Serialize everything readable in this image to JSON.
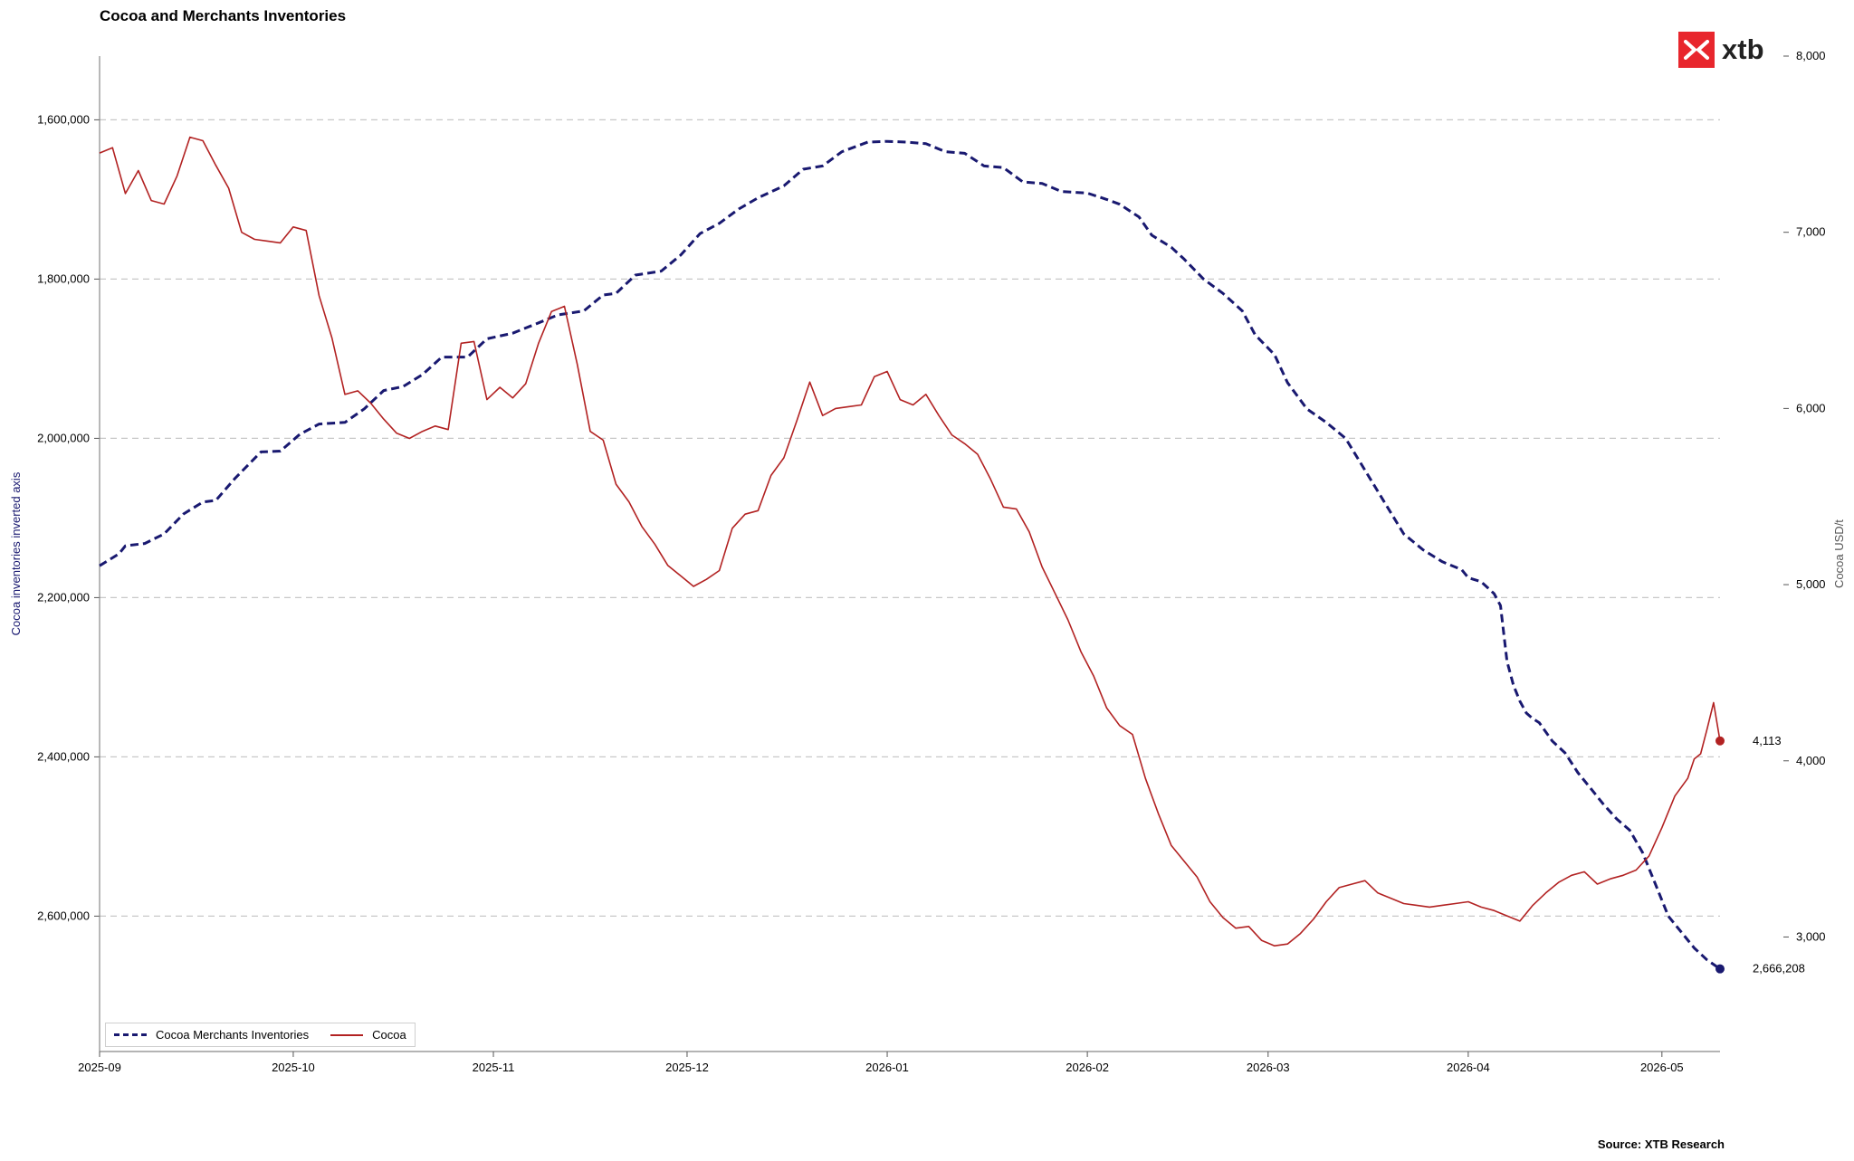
{
  "title": "Cocoa and Merchants Inventories",
  "source": "Source: XTB Research",
  "logo_text": "xtb",
  "chart_data": {
    "type": "line",
    "title": "Cocoa and Merchants Inventories",
    "x_ticks": [
      "2025-09",
      "2025-10",
      "2025-11",
      "2025-12",
      "2026-01",
      "2026-02",
      "2026-03",
      "2026-04",
      "2026-05"
    ],
    "xlim": [
      "2025-09-01",
      "2026-05-10"
    ],
    "y_left": {
      "label": "Cocoa inventories inverted axis",
      "inverted": true,
      "lim": [
        1520000,
        2770000
      ],
      "ticks": [
        "1,600,000",
        "1,800,000",
        "2,000,000",
        "2,200,000",
        "2,400,000",
        "2,600,000"
      ],
      "tick_values": [
        1600000,
        1800000,
        2000000,
        2200000,
        2400000,
        2600000
      ]
    },
    "y_right": {
      "label": "Cocoa USD/t",
      "lim": [
        2350,
        8000
      ],
      "ticks": [
        "3,000",
        "4,000",
        "5,000",
        "6,000",
        "7,000",
        "8,000"
      ],
      "tick_values": [
        3000,
        4000,
        5000,
        6000,
        7000,
        8000
      ]
    },
    "grid": "horizontal dashed",
    "legend_position": "bottom-left",
    "series": [
      {
        "name": "Cocoa Merchants Inventories",
        "axis": "left",
        "color": "#191970",
        "style": "dashed",
        "last_label": "2,666,208",
        "points": [
          [
            "2025-09-01",
            2160000
          ],
          [
            "2025-09-04",
            2145000
          ],
          [
            "2025-09-05",
            2135000
          ],
          [
            "2025-09-08",
            2132000
          ],
          [
            "2025-09-11",
            2120000
          ],
          [
            "2025-09-14",
            2095000
          ],
          [
            "2025-09-17",
            2080000
          ],
          [
            "2025-09-19",
            2078000
          ],
          [
            "2025-09-22",
            2050000
          ],
          [
            "2025-09-26",
            2017000
          ],
          [
            "2025-09-29",
            2016000
          ],
          [
            "2025-10-02",
            1995000
          ],
          [
            "2025-10-05",
            1982000
          ],
          [
            "2025-10-09",
            1980000
          ],
          [
            "2025-10-12",
            1963000
          ],
          [
            "2025-10-15",
            1940000
          ],
          [
            "2025-10-18",
            1935000
          ],
          [
            "2025-10-21",
            1920000
          ],
          [
            "2025-10-24",
            1898000
          ],
          [
            "2025-10-28",
            1898000
          ],
          [
            "2025-10-31",
            1875000
          ],
          [
            "2025-11-04",
            1868000
          ],
          [
            "2025-11-08",
            1855000
          ],
          [
            "2025-11-11",
            1845000
          ],
          [
            "2025-11-15",
            1840000
          ],
          [
            "2025-11-18",
            1820000
          ],
          [
            "2025-11-20",
            1818000
          ],
          [
            "2025-11-23",
            1795000
          ],
          [
            "2025-11-27",
            1790000
          ],
          [
            "2025-11-30",
            1770000
          ],
          [
            "2025-12-03",
            1743000
          ],
          [
            "2025-12-06",
            1730000
          ],
          [
            "2025-12-09",
            1712000
          ],
          [
            "2025-12-12",
            1698000
          ],
          [
            "2025-12-16",
            1683000
          ],
          [
            "2025-12-19",
            1662000
          ],
          [
            "2025-12-22",
            1658000
          ],
          [
            "2025-12-25",
            1640000
          ],
          [
            "2025-12-29",
            1628000
          ],
          [
            "2026-01-01",
            1627000
          ],
          [
            "2026-01-04",
            1628000
          ],
          [
            "2026-01-07",
            1630000
          ],
          [
            "2026-01-10",
            1640000
          ],
          [
            "2026-01-13",
            1642000
          ],
          [
            "2026-01-16",
            1658000
          ],
          [
            "2026-01-19",
            1660000
          ],
          [
            "2026-01-22",
            1678000
          ],
          [
            "2026-01-25",
            1680000
          ],
          [
            "2026-01-28",
            1690000
          ],
          [
            "2026-02-01",
            1692000
          ],
          [
            "2026-02-04",
            1700000
          ],
          [
            "2026-02-06",
            1706000
          ],
          [
            "2026-02-09",
            1722000
          ],
          [
            "2026-02-11",
            1745000
          ],
          [
            "2026-02-14",
            1760000
          ],
          [
            "2026-02-16",
            1775000
          ],
          [
            "2026-02-19",
            1800000
          ],
          [
            "2026-02-22",
            1818000
          ],
          [
            "2026-02-25",
            1840000
          ],
          [
            "2026-02-27",
            1870000
          ],
          [
            "2026-03-02",
            1895000
          ],
          [
            "2026-03-04",
            1930000
          ],
          [
            "2026-03-07",
            1963000
          ],
          [
            "2026-03-10",
            1980000
          ],
          [
            "2026-03-13",
            2000000
          ],
          [
            "2026-03-16",
            2040000
          ],
          [
            "2026-03-19",
            2080000
          ],
          [
            "2026-03-22",
            2120000
          ],
          [
            "2026-03-25",
            2140000
          ],
          [
            "2026-03-28",
            2155000
          ],
          [
            "2026-03-31",
            2165000
          ],
          [
            "2026-04-01",
            2175000
          ],
          [
            "2026-04-03",
            2180000
          ],
          [
            "2026-04-05",
            2195000
          ],
          [
            "2026-04-06",
            2210000
          ],
          [
            "2026-04-07",
            2280000
          ],
          [
            "2026-04-08",
            2310000
          ],
          [
            "2026-04-09",
            2330000
          ],
          [
            "2026-04-10",
            2345000
          ],
          [
            "2026-04-11",
            2352000
          ],
          [
            "2026-04-12",
            2357000
          ],
          [
            "2026-04-14",
            2380000
          ],
          [
            "2026-04-16",
            2395000
          ],
          [
            "2026-04-18",
            2420000
          ],
          [
            "2026-04-20",
            2440000
          ],
          [
            "2026-04-22",
            2460000
          ],
          [
            "2026-04-24",
            2478000
          ],
          [
            "2026-04-26",
            2492000
          ],
          [
            "2026-04-28",
            2520000
          ],
          [
            "2026-04-30",
            2560000
          ],
          [
            "2026-05-02",
            2600000
          ],
          [
            "2026-05-04",
            2620000
          ],
          [
            "2026-05-06",
            2640000
          ],
          [
            "2026-05-08",
            2655000
          ],
          [
            "2026-05-10",
            2666208
          ]
        ]
      },
      {
        "name": "Cocoa",
        "axis": "right",
        "color": "#b22222",
        "style": "solid",
        "last_label": "4,113",
        "points": [
          [
            "2025-09-01",
            7450
          ],
          [
            "2025-09-03",
            7480
          ],
          [
            "2025-09-05",
            7220
          ],
          [
            "2025-09-07",
            7350
          ],
          [
            "2025-09-09",
            7180
          ],
          [
            "2025-09-11",
            7160
          ],
          [
            "2025-09-13",
            7320
          ],
          [
            "2025-09-15",
            7540
          ],
          [
            "2025-09-17",
            7520
          ],
          [
            "2025-09-19",
            7380
          ],
          [
            "2025-09-21",
            7250
          ],
          [
            "2025-09-23",
            7000
          ],
          [
            "2025-09-25",
            6960
          ],
          [
            "2025-09-27",
            6950
          ],
          [
            "2025-09-29",
            6940
          ],
          [
            "2025-10-01",
            7030
          ],
          [
            "2025-10-03",
            7010
          ],
          [
            "2025-10-05",
            6640
          ],
          [
            "2025-10-07",
            6400
          ],
          [
            "2025-10-09",
            6080
          ],
          [
            "2025-10-11",
            6100
          ],
          [
            "2025-10-13",
            6030
          ],
          [
            "2025-10-15",
            5940
          ],
          [
            "2025-10-17",
            5860
          ],
          [
            "2025-10-19",
            5830
          ],
          [
            "2025-10-21",
            5870
          ],
          [
            "2025-10-23",
            5900
          ],
          [
            "2025-10-25",
            5880
          ],
          [
            "2025-10-27",
            6370
          ],
          [
            "2025-10-29",
            6380
          ],
          [
            "2025-10-31",
            6050
          ],
          [
            "2025-11-02",
            6120
          ],
          [
            "2025-11-04",
            6060
          ],
          [
            "2025-11-06",
            6140
          ],
          [
            "2025-11-08",
            6370
          ],
          [
            "2025-11-10",
            6550
          ],
          [
            "2025-11-12",
            6580
          ],
          [
            "2025-11-14",
            6250
          ],
          [
            "2025-11-16",
            5870
          ],
          [
            "2025-11-18",
            5820
          ],
          [
            "2025-11-20",
            5570
          ],
          [
            "2025-11-22",
            5470
          ],
          [
            "2025-11-24",
            5330
          ],
          [
            "2025-11-26",
            5230
          ],
          [
            "2025-11-28",
            5110
          ],
          [
            "2025-11-30",
            5050
          ],
          [
            "2025-12-02",
            4990
          ],
          [
            "2025-12-04",
            5030
          ],
          [
            "2025-12-06",
            5080
          ],
          [
            "2025-12-08",
            5320
          ],
          [
            "2025-12-10",
            5400
          ],
          [
            "2025-12-12",
            5420
          ],
          [
            "2025-12-14",
            5620
          ],
          [
            "2025-12-16",
            5720
          ],
          [
            "2025-12-18",
            5930
          ],
          [
            "2025-12-20",
            6150
          ],
          [
            "2025-12-22",
            5960
          ],
          [
            "2025-12-24",
            6000
          ],
          [
            "2025-12-26",
            6010
          ],
          [
            "2025-12-28",
            6020
          ],
          [
            "2025-12-30",
            6180
          ],
          [
            "2026-01-01",
            6210
          ],
          [
            "2026-01-03",
            6050
          ],
          [
            "2026-01-05",
            6020
          ],
          [
            "2026-01-07",
            6080
          ],
          [
            "2026-01-09",
            5960
          ],
          [
            "2026-01-11",
            5850
          ],
          [
            "2026-01-13",
            5800
          ],
          [
            "2026-01-15",
            5740
          ],
          [
            "2026-01-17",
            5600
          ],
          [
            "2026-01-19",
            5440
          ],
          [
            "2026-01-21",
            5430
          ],
          [
            "2026-01-23",
            5300
          ],
          [
            "2026-01-25",
            5100
          ],
          [
            "2026-01-27",
            4950
          ],
          [
            "2026-01-29",
            4800
          ],
          [
            "2026-01-31",
            4620
          ],
          [
            "2026-02-02",
            4480
          ],
          [
            "2026-02-04",
            4300
          ],
          [
            "2026-02-06",
            4200
          ],
          [
            "2026-02-08",
            4150
          ],
          [
            "2026-02-10",
            3900
          ],
          [
            "2026-02-12",
            3700
          ],
          [
            "2026-02-14",
            3520
          ],
          [
            "2026-02-16",
            3430
          ],
          [
            "2026-02-18",
            3340
          ],
          [
            "2026-02-20",
            3200
          ],
          [
            "2026-02-22",
            3110
          ],
          [
            "2026-02-24",
            3050
          ],
          [
            "2026-02-26",
            3060
          ],
          [
            "2026-02-28",
            2980
          ],
          [
            "2026-03-02",
            2950
          ],
          [
            "2026-03-04",
            2960
          ],
          [
            "2026-03-06",
            3020
          ],
          [
            "2026-03-08",
            3100
          ],
          [
            "2026-03-10",
            3200
          ],
          [
            "2026-03-12",
            3280
          ],
          [
            "2026-03-14",
            3300
          ],
          [
            "2026-03-16",
            3320
          ],
          [
            "2026-03-18",
            3250
          ],
          [
            "2026-03-20",
            3220
          ],
          [
            "2026-03-22",
            3190
          ],
          [
            "2026-03-24",
            3180
          ],
          [
            "2026-03-26",
            3170
          ],
          [
            "2026-03-28",
            3180
          ],
          [
            "2026-03-30",
            3190
          ],
          [
            "2026-04-01",
            3200
          ],
          [
            "2026-04-03",
            3170
          ],
          [
            "2026-04-05",
            3150
          ],
          [
            "2026-04-07",
            3120
          ],
          [
            "2026-04-09",
            3090
          ],
          [
            "2026-04-11",
            3180
          ],
          [
            "2026-04-13",
            3250
          ],
          [
            "2026-04-15",
            3310
          ],
          [
            "2026-04-17",
            3350
          ],
          [
            "2026-04-19",
            3370
          ],
          [
            "2026-04-21",
            3300
          ],
          [
            "2026-04-23",
            3330
          ],
          [
            "2026-04-25",
            3350
          ],
          [
            "2026-04-27",
            3380
          ],
          [
            "2026-04-29",
            3460
          ],
          [
            "2026-05-01",
            3620
          ],
          [
            "2026-05-03",
            3800
          ],
          [
            "2026-05-05",
            3900
          ],
          [
            "2026-05-06",
            4010
          ],
          [
            "2026-05-07",
            4040
          ],
          [
            "2026-05-08",
            4180
          ],
          [
            "2026-05-09",
            4330
          ],
          [
            "2026-05-10",
            4113
          ]
        ]
      }
    ]
  }
}
